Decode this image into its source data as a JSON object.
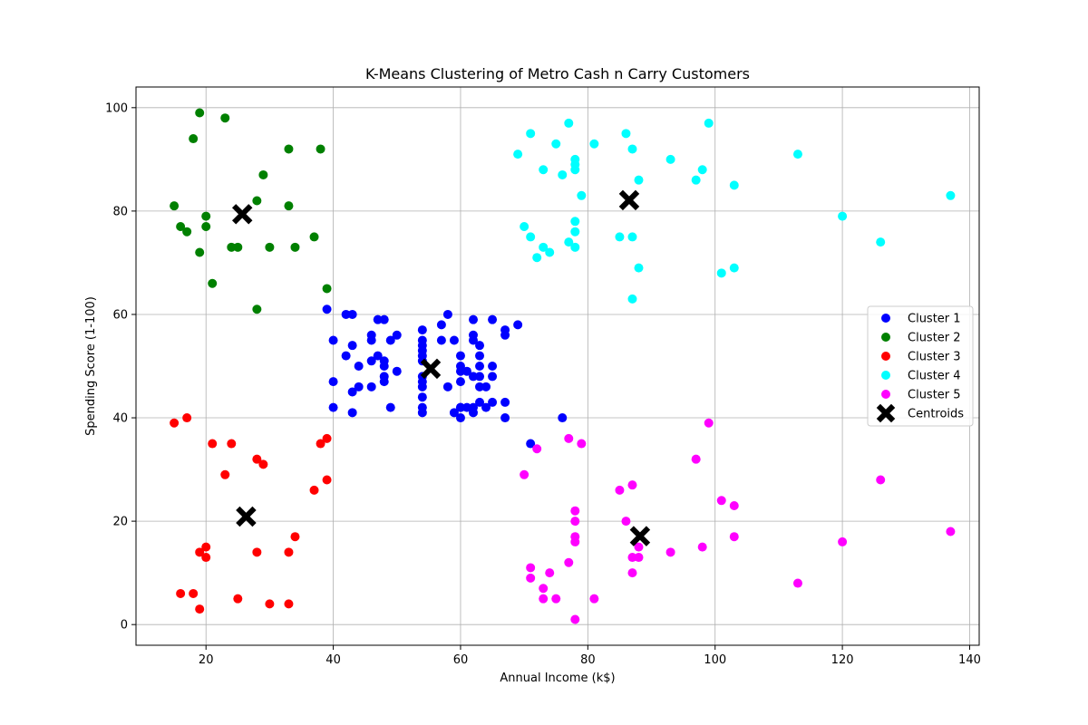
{
  "chart_data": {
    "type": "scatter",
    "title": "K-Means Clustering of Metro Cash n Carry Customers",
    "xlabel": "Annual Income (k$)",
    "ylabel": "Spending Score (1-100)",
    "xlim": [
      9,
      141.5
    ],
    "ylim": [
      -4,
      104
    ],
    "xticks": [
      20,
      40,
      60,
      80,
      100,
      120,
      140
    ],
    "yticks": [
      0,
      20,
      40,
      60,
      80,
      100
    ],
    "grid": true,
    "legend_position": "center-right",
    "series": [
      {
        "name": "Cluster 1",
        "color": "#0000ff",
        "points": [
          [
            39,
            61
          ],
          [
            40,
            55
          ],
          [
            40,
            47
          ],
          [
            40,
            42
          ],
          [
            42,
            52
          ],
          [
            42,
            60
          ],
          [
            43,
            60
          ],
          [
            43,
            54
          ],
          [
            43,
            45
          ],
          [
            43,
            41
          ],
          [
            44,
            50
          ],
          [
            44,
            46
          ],
          [
            46,
            51
          ],
          [
            46,
            46
          ],
          [
            46,
            56
          ],
          [
            46,
            55
          ],
          [
            47,
            52
          ],
          [
            47,
            59
          ],
          [
            48,
            59
          ],
          [
            48,
            51
          ],
          [
            48,
            50
          ],
          [
            48,
            48
          ],
          [
            48,
            47
          ],
          [
            49,
            55
          ],
          [
            49,
            42
          ],
          [
            50,
            49
          ],
          [
            50,
            56
          ],
          [
            54,
            47
          ],
          [
            54,
            54
          ],
          [
            54,
            53
          ],
          [
            54,
            48
          ],
          [
            54,
            52
          ],
          [
            54,
            42
          ],
          [
            54,
            51
          ],
          [
            54,
            55
          ],
          [
            54,
            41
          ],
          [
            54,
            44
          ],
          [
            54,
            57
          ],
          [
            54,
            46
          ],
          [
            57,
            58
          ],
          [
            57,
            55
          ],
          [
            58,
            60
          ],
          [
            58,
            46
          ],
          [
            59,
            55
          ],
          [
            59,
            41
          ],
          [
            60,
            49
          ],
          [
            60,
            40
          ],
          [
            60,
            42
          ],
          [
            60,
            52
          ],
          [
            60,
            47
          ],
          [
            60,
            50
          ],
          [
            60,
            42
          ],
          [
            61,
            49
          ],
          [
            61,
            42
          ],
          [
            62,
            41
          ],
          [
            62,
            48
          ],
          [
            62,
            59
          ],
          [
            62,
            55
          ],
          [
            62,
            56
          ],
          [
            62,
            42
          ],
          [
            63,
            50
          ],
          [
            63,
            46
          ],
          [
            63,
            43
          ],
          [
            63,
            48
          ],
          [
            63,
            52
          ],
          [
            63,
            54
          ],
          [
            64,
            42
          ],
          [
            64,
            46
          ],
          [
            65,
            48
          ],
          [
            65,
            50
          ],
          [
            65,
            43
          ],
          [
            65,
            59
          ],
          [
            67,
            43
          ],
          [
            67,
            57
          ],
          [
            67,
            56
          ],
          [
            67,
            40
          ],
          [
            69,
            58
          ],
          [
            71,
            35
          ],
          [
            76,
            40
          ]
        ]
      },
      {
        "name": "Cluster 2",
        "color": "#008000",
        "points": [
          [
            15,
            81
          ],
          [
            16,
            77
          ],
          [
            17,
            76
          ],
          [
            18,
            94
          ],
          [
            19,
            72
          ],
          [
            19,
            99
          ],
          [
            20,
            77
          ],
          [
            20,
            79
          ],
          [
            21,
            66
          ],
          [
            23,
            98
          ],
          [
            24,
            73
          ],
          [
            25,
            73
          ],
          [
            28,
            82
          ],
          [
            28,
            61
          ],
          [
            29,
            87
          ],
          [
            30,
            73
          ],
          [
            33,
            92
          ],
          [
            33,
            81
          ],
          [
            34,
            73
          ],
          [
            37,
            75
          ],
          [
            38,
            92
          ],
          [
            39,
            65
          ]
        ]
      },
      {
        "name": "Cluster 3",
        "color": "#ff0000",
        "points": [
          [
            15,
            39
          ],
          [
            16,
            6
          ],
          [
            17,
            40
          ],
          [
            18,
            6
          ],
          [
            19,
            3
          ],
          [
            19,
            14
          ],
          [
            20,
            15
          ],
          [
            20,
            13
          ],
          [
            21,
            35
          ],
          [
            23,
            29
          ],
          [
            24,
            35
          ],
          [
            25,
            5
          ],
          [
            28,
            14
          ],
          [
            28,
            32
          ],
          [
            29,
            31
          ],
          [
            30,
            4
          ],
          [
            33,
            4
          ],
          [
            33,
            14
          ],
          [
            34,
            17
          ],
          [
            37,
            26
          ],
          [
            38,
            35
          ],
          [
            39,
            36
          ],
          [
            39,
            28
          ]
        ]
      },
      {
        "name": "Cluster 4",
        "color": "#00ffff",
        "points": [
          [
            69,
            91
          ],
          [
            70,
            77
          ],
          [
            71,
            95
          ],
          [
            71,
            75
          ],
          [
            72,
            71
          ],
          [
            73,
            88
          ],
          [
            73,
            73
          ],
          [
            74,
            72
          ],
          [
            75,
            93
          ],
          [
            76,
            87
          ],
          [
            77,
            97
          ],
          [
            77,
            74
          ],
          [
            78,
            90
          ],
          [
            78,
            89
          ],
          [
            78,
            88
          ],
          [
            78,
            78
          ],
          [
            78,
            76
          ],
          [
            78,
            73
          ],
          [
            79,
            83
          ],
          [
            81,
            93
          ],
          [
            85,
            75
          ],
          [
            86,
            95
          ],
          [
            87,
            92
          ],
          [
            87,
            75
          ],
          [
            87,
            63
          ],
          [
            88,
            86
          ],
          [
            88,
            69
          ],
          [
            93,
            90
          ],
          [
            97,
            86
          ],
          [
            98,
            88
          ],
          [
            99,
            97
          ],
          [
            101,
            68
          ],
          [
            103,
            85
          ],
          [
            103,
            69
          ],
          [
            113,
            91
          ],
          [
            120,
            79
          ],
          [
            126,
            74
          ],
          [
            137,
            83
          ]
        ]
      },
      {
        "name": "Cluster 5",
        "color": "#ff00ff",
        "points": [
          [
            70,
            29
          ],
          [
            71,
            11
          ],
          [
            71,
            9
          ],
          [
            72,
            34
          ],
          [
            73,
            5
          ],
          [
            73,
            7
          ],
          [
            74,
            10
          ],
          [
            75,
            5
          ],
          [
            77,
            12
          ],
          [
            77,
            36
          ],
          [
            78,
            22
          ],
          [
            78,
            17
          ],
          [
            78,
            20
          ],
          [
            78,
            16
          ],
          [
            78,
            1
          ],
          [
            79,
            35
          ],
          [
            81,
            5
          ],
          [
            85,
            26
          ],
          [
            86,
            20
          ],
          [
            87,
            27
          ],
          [
            87,
            13
          ],
          [
            87,
            10
          ],
          [
            88,
            13
          ],
          [
            88,
            15
          ],
          [
            93,
            14
          ],
          [
            97,
            32
          ],
          [
            98,
            15
          ],
          [
            99,
            39
          ],
          [
            101,
            24
          ],
          [
            103,
            23
          ],
          [
            103,
            17
          ],
          [
            113,
            8
          ],
          [
            120,
            16
          ],
          [
            126,
            28
          ],
          [
            137,
            18
          ]
        ]
      }
    ],
    "centroids": {
      "name": "Centroids",
      "color": "#000000",
      "points": [
        [
          55.3,
          49.5
        ],
        [
          25.7,
          79.4
        ],
        [
          26.3,
          20.9
        ],
        [
          86.5,
          82.1
        ],
        [
          88.2,
          17.1
        ]
      ]
    }
  }
}
